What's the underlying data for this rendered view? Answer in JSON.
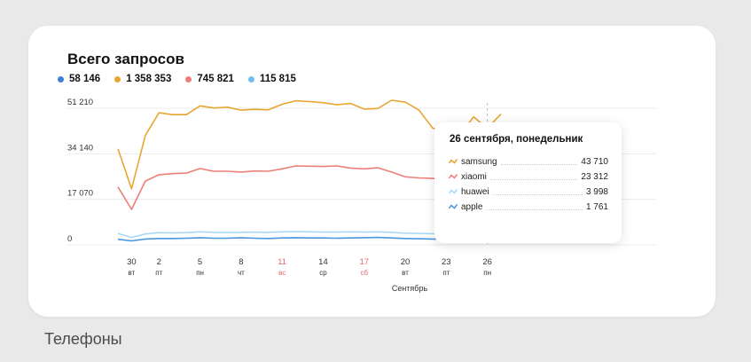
{
  "caption": "Телефоны",
  "chart_data": {
    "type": "line",
    "title": "Всего запросов",
    "xlabel": "Сентябрь",
    "ylabel": "",
    "ylim": [
      0,
      51210
    ],
    "yticks": [
      "51 210",
      "34 140",
      "17 070",
      "0"
    ],
    "ytick_values": [
      51210,
      34140,
      17070,
      0
    ],
    "x_dates": [
      "29",
      "30",
      "1",
      "2",
      "3",
      "4",
      "5",
      "6",
      "7",
      "8",
      "9",
      "10",
      "11",
      "12",
      "13",
      "14",
      "15",
      "16",
      "17",
      "18",
      "19",
      "20",
      "21",
      "22",
      "23",
      "24",
      "25",
      "26",
      "27"
    ],
    "x_ticks": [
      {
        "day": "30",
        "dow": "вт",
        "weekend": false,
        "index": 1
      },
      {
        "day": "2",
        "dow": "пт",
        "weekend": false,
        "index": 3
      },
      {
        "day": "5",
        "dow": "пн",
        "weekend": false,
        "index": 6
      },
      {
        "day": "8",
        "dow": "чт",
        "weekend": false,
        "index": 9
      },
      {
        "day": "11",
        "dow": "вс",
        "weekend": true,
        "index": 12
      },
      {
        "day": "14",
        "dow": "ср",
        "weekend": false,
        "index": 15
      },
      {
        "day": "17",
        "dow": "сб",
        "weekend": true,
        "index": 18
      },
      {
        "day": "20",
        "dow": "вт",
        "weekend": false,
        "index": 21
      },
      {
        "day": "23",
        "dow": "пт",
        "weekend": false,
        "index": 24
      },
      {
        "day": "26",
        "dow": "пн",
        "weekend": false,
        "index": 27
      }
    ],
    "legend": [
      {
        "total": "58 146",
        "color": "#3b82d6"
      },
      {
        "total": "1 358 353",
        "color": "#e8a531"
      },
      {
        "total": "745 821",
        "color": "#ec7f7a"
      },
      {
        "total": "115 815",
        "color": "#6fc0ef"
      }
    ],
    "series": [
      {
        "name": "samsung",
        "color": "#e8a531",
        "values": [
          36000,
          21000,
          41000,
          49500,
          48800,
          48800,
          52100,
          51300,
          51600,
          50500,
          50800,
          50600,
          52700,
          54000,
          53700,
          53300,
          52500,
          53000,
          50900,
          51100,
          54200,
          53500,
          50500,
          43800,
          42000,
          41500,
          48000,
          43710,
          49000
        ]
      },
      {
        "name": "xiaomi",
        "color": "#ec7f7a",
        "values": [
          21700,
          13300,
          23900,
          26300,
          26700,
          26900,
          28600,
          27600,
          27600,
          27300,
          27700,
          27600,
          28500,
          29600,
          29500,
          29400,
          29600,
          28800,
          28500,
          28900,
          27300,
          25500,
          25100,
          24900,
          24300,
          24200,
          26000,
          23312,
          23800
        ]
      },
      {
        "name": "huawei",
        "color": "#a9d8f7",
        "values": [
          4300,
          2800,
          4100,
          4600,
          4500,
          4600,
          4900,
          4700,
          4700,
          4700,
          4800,
          4700,
          4900,
          5000,
          4900,
          4800,
          4800,
          4900,
          4800,
          4900,
          4700,
          4400,
          4300,
          4200,
          4100,
          4200,
          4400,
          3998,
          4100
        ]
      },
      {
        "name": "apple",
        "color": "#4a96e1",
        "values": [
          2100,
          1500,
          2200,
          2400,
          2400,
          2500,
          2700,
          2500,
          2500,
          2700,
          2500,
          2400,
          2600,
          2700,
          2600,
          2600,
          2500,
          2600,
          2700,
          2800,
          2600,
          2400,
          2300,
          2200,
          2100,
          2100,
          2200,
          1761,
          2000
        ]
      }
    ],
    "highlight_index": 27,
    "tooltip": {
      "title": "26 сентября, понедельник",
      "rows": [
        {
          "name": "samsung",
          "value": "43 710",
          "color": "#e8a531"
        },
        {
          "name": "xiaomi",
          "value": "23 312",
          "color": "#ec7f7a"
        },
        {
          "name": "huawei",
          "value": "3 998",
          "color": "#a9d8f7"
        },
        {
          "name": "apple",
          "value": "1 761",
          "color": "#4a96e1"
        }
      ]
    },
    "grid": true
  }
}
